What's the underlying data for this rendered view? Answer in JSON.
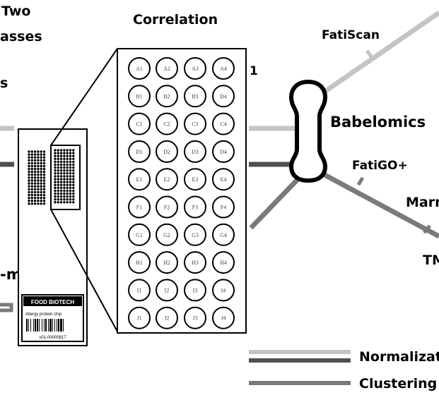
{
  "labels": {
    "left_top_1": "Two",
    "left_top_2": "asses",
    "left_mid": "s",
    "left_bottom": "-m",
    "correlation": "Correlation",
    "fatiscan": "FatiScan",
    "babelomics": "Babelomics",
    "fatigo": "FatiGO+",
    "marmite": "Marm",
    "tm": "TM",
    "partial_one": "1"
  },
  "chip": {
    "brand": "FOOD BIOTECH",
    "name": "Allergy protein chip",
    "code": "s01-00000817"
  },
  "wells": [
    [
      "A1",
      "A2",
      "A3",
      "A4"
    ],
    [
      "B1",
      "B2",
      "B3",
      "B4"
    ],
    [
      "C1",
      "C2",
      "C3",
      "C4"
    ],
    [
      "D1",
      "D2",
      "D3",
      "D4"
    ],
    [
      "E1",
      "E2",
      "E3",
      "E4"
    ],
    [
      "F1",
      "F2",
      "F3",
      "F4"
    ],
    [
      "G1",
      "G2",
      "G3",
      "G4"
    ],
    [
      "H1",
      "H2",
      "H3",
      "H4"
    ],
    [
      "I1",
      "I2",
      "I3",
      "I4"
    ],
    [
      "J1",
      "J2",
      "J3",
      "J4"
    ]
  ],
  "legend": [
    {
      "label": "Normalizatio",
      "colors": [
        "#c4c4c4",
        "#505050"
      ]
    },
    {
      "label": "Clustering",
      "colors": [
        "#7a7a7a"
      ]
    }
  ],
  "colors": {
    "light_line": "#c4c4c4",
    "dark_line": "#505050",
    "mid_line": "#7a7a7a"
  }
}
